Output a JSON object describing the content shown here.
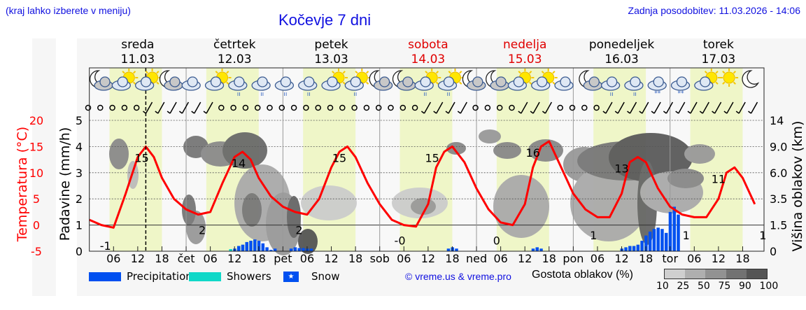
{
  "header": {
    "hint": "(kraj lahko izberete v meniju)",
    "title": "Kočevje 7 dni",
    "updated": "Zadnja posodobitev: 11.03.2026 - 14:06"
  },
  "days": [
    {
      "name": "sreda",
      "date": "11.03",
      "weekend": false
    },
    {
      "name": "četrtek",
      "date": "12.03",
      "weekend": false
    },
    {
      "name": "petek",
      "date": "13.03",
      "weekend": false
    },
    {
      "name": "sobota",
      "date": "14.03",
      "weekend": true
    },
    {
      "name": "nedelja",
      "date": "15.03",
      "weekend": true
    },
    {
      "name": "ponedeljek",
      "date": "16.03",
      "weekend": false
    },
    {
      "name": "torek",
      "date": "17.03",
      "weekend": false
    }
  ],
  "axes": {
    "temp_label": "Temperatura (°C)",
    "temp_ticks": [
      "20",
      "15",
      "10",
      "5",
      "0",
      "-5"
    ],
    "precip_label": "Padavine (mm/h)",
    "precip_ticks": [
      "5",
      "4",
      "3",
      "2",
      "1",
      "0"
    ],
    "cloud_label": "Višina oblakov (km)",
    "cloud_ticks": [
      "14",
      "9.0",
      "6.0",
      "3.5",
      "1.5",
      "0"
    ],
    "x_ticks": [
      "06",
      "12",
      "18",
      "čet",
      "06",
      "12",
      "18",
      "pet",
      "06",
      "12",
      "18",
      "sob",
      "06",
      "12",
      "18",
      "ned",
      "06",
      "12",
      "18",
      "pon",
      "06",
      "12",
      "18",
      "tor",
      "06",
      "12",
      "18"
    ]
  },
  "legend": {
    "precipitation": "Precipitation",
    "showers": "Showers",
    "snow": "Snow",
    "snow_glyph": "★",
    "copyright": "© vreme.us & vreme.pro",
    "cloud_density_label": "Gostota oblakov (%)",
    "cloud_density_ticks": [
      "10",
      "25",
      "50",
      "75",
      "90",
      "100"
    ]
  },
  "colors": {
    "temperature": "#ff0000",
    "precipitation": "#0050f0",
    "showers": "#10d8c8",
    "daylight": "#eff6c8",
    "title": "#1010e0",
    "weekend": "#e00000"
  },
  "chart_data": {
    "type": "line",
    "title": "Kočevje 7 dni",
    "xlabel": "",
    "ylabel": "Padavine (mm/h)",
    "ylim": [
      0,
      5
    ],
    "y2label": "Temperatura (°C)",
    "y2lim": [
      -5,
      20
    ],
    "y3label": "Višina oblakov (km)",
    "x_unit": "hours from Wed 11.03 00:00",
    "now_marker_hour": 14,
    "series": [
      {
        "name": "Temperatura",
        "axis": "temperature",
        "x": [
          0,
          3,
          6,
          9,
          12,
          14,
          16,
          18,
          21,
          24,
          27,
          30,
          33,
          36,
          38,
          40,
          42,
          45,
          48,
          51,
          54,
          57,
          60,
          62,
          64,
          66,
          69,
          72,
          75,
          78,
          81,
          84,
          86,
          88,
          90,
          93,
          96,
          99,
          102,
          105,
          108,
          110,
          112,
          114,
          117,
          120,
          123,
          126,
          129,
          132,
          134,
          136,
          138,
          141,
          144,
          147,
          150,
          153,
          156,
          158,
          160,
          162,
          165
        ],
        "values": [
          1,
          0,
          -0.5,
          6,
          13,
          15,
          13,
          9,
          5,
          3,
          2,
          2.5,
          8,
          13,
          14,
          12.5,
          9,
          5.5,
          3.5,
          2.5,
          2,
          5,
          11,
          14,
          15,
          13,
          8,
          4,
          1,
          0,
          -0.3,
          4,
          11,
          14,
          15,
          12,
          7,
          3,
          0.5,
          0,
          4,
          11,
          15,
          16,
          11,
          6,
          3,
          1.5,
          1.5,
          6,
          12,
          13,
          12,
          7,
          3.5,
          2,
          1.5,
          1.5,
          5,
          10,
          11,
          9,
          4
        ]
      },
      {
        "name": "Precipitation",
        "axis": "precip",
        "x": [
          36,
          37,
          38,
          39,
          40,
          41,
          42,
          43,
          44,
          45,
          46,
          50,
          51,
          52,
          53,
          54,
          55,
          89,
          90,
          91,
          110,
          111,
          112,
          132,
          133,
          134,
          135,
          136,
          137,
          138,
          139,
          140,
          141,
          142,
          143,
          144,
          145,
          146
        ],
        "values": [
          0.1,
          0.2,
          0.25,
          0.35,
          0.4,
          0.45,
          0.4,
          0.3,
          0.15,
          0.05,
          0.1,
          0.1,
          0.15,
          0.12,
          0.12,
          0.1,
          0.1,
          0.1,
          0.15,
          0.1,
          0.1,
          0.15,
          0.1,
          0.1,
          0.15,
          0.2,
          0.2,
          0.25,
          0.4,
          0.6,
          0.75,
          0.85,
          0.9,
          0.85,
          0.7,
          1.5,
          1.7,
          1.4
        ]
      },
      {
        "name": "Showers",
        "axis": "precip",
        "x": [
          35
        ],
        "values": [
          0.08
        ]
      }
    ],
    "temperature_labels": [
      {
        "hour": 4,
        "value": "-1"
      },
      {
        "hour": 13,
        "value": "15"
      },
      {
        "hour": 28,
        "value": "2"
      },
      {
        "hour": 37,
        "value": "14"
      },
      {
        "hour": 52,
        "value": "2"
      },
      {
        "hour": 62,
        "value": "15"
      },
      {
        "hour": 77,
        "value": "-0"
      },
      {
        "hour": 85,
        "value": "15"
      },
      {
        "hour": 101,
        "value": "0"
      },
      {
        "hour": 110,
        "value": "16"
      },
      {
        "hour": 125,
        "value": "1"
      },
      {
        "hour": 132,
        "value": "13"
      },
      {
        "hour": 148,
        "value": "1"
      },
      {
        "hour": 156,
        "value": "11"
      },
      {
        "hour": 167,
        "value": "1"
      }
    ],
    "grid": true
  }
}
